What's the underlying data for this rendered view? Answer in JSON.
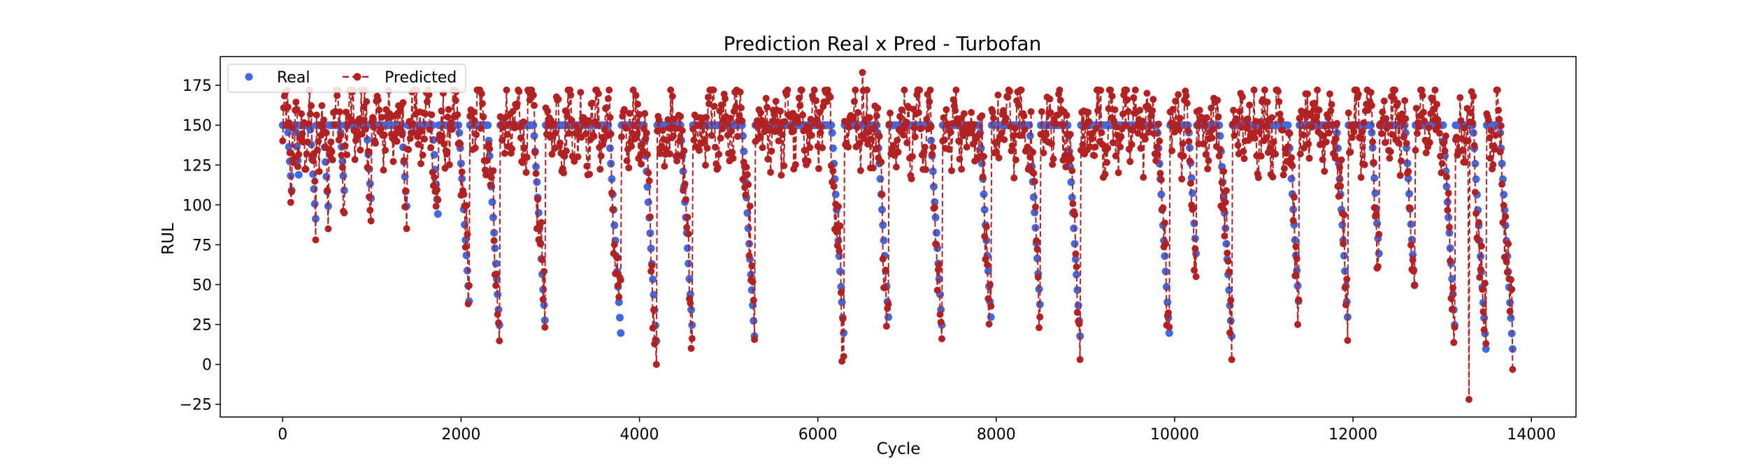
{
  "chart_data": {
    "type": "line",
    "title": "Prediction Real x Pred - Turbofan",
    "xlabel": "Cycle",
    "ylabel": "RUL",
    "xlim": [
      -700,
      14500
    ],
    "ylim": [
      -33,
      193
    ],
    "xticks": [
      0,
      2000,
      4000,
      6000,
      8000,
      10000,
      12000,
      14000
    ],
    "yticks": [
      -25,
      0,
      25,
      50,
      75,
      100,
      125,
      150,
      175
    ],
    "grid": false,
    "legend_position": "top-left",
    "legend": [
      {
        "name": "Real",
        "style": "markers",
        "color": "#4169e1"
      },
      {
        "name": "Predicted",
        "style": "dashed line with markers",
        "color": "#b22222"
      }
    ],
    "series": [
      {
        "name": "Real",
        "color": "#4169e1",
        "cap": 150,
        "note": "Each engine run: RUL capped at 150, then decreasing linearly to the minimum",
        "engines": [
          [
            0,
            110,
            100
          ],
          [
            110,
            190,
            110
          ],
          [
            190,
            380,
            82
          ],
          [
            380,
            520,
            90
          ],
          [
            520,
            700,
            100
          ],
          [
            700,
            1000,
            95
          ],
          [
            1000,
            1400,
            90
          ],
          [
            1400,
            1750,
            85
          ],
          [
            1750,
            2100,
            30
          ],
          [
            2100,
            2440,
            15
          ],
          [
            2440,
            2950,
            18
          ],
          [
            2950,
            3800,
            10
          ],
          [
            3800,
            4200,
            5
          ],
          [
            4200,
            4600,
            15
          ],
          [
            4600,
            5300,
            8
          ],
          [
            5300,
            6300,
            10
          ],
          [
            6300,
            6800,
            20
          ],
          [
            6800,
            7400,
            15
          ],
          [
            7400,
            7950,
            20
          ],
          [
            7950,
            8500,
            28
          ],
          [
            8500,
            8950,
            8
          ],
          [
            8950,
            9950,
            10
          ],
          [
            9950,
            10250,
            60
          ],
          [
            10250,
            10650,
            8
          ],
          [
            10650,
            11400,
            30
          ],
          [
            11400,
            11950,
            20
          ],
          [
            11950,
            12300,
            60
          ],
          [
            12300,
            12700,
            40
          ],
          [
            12700,
            13150,
            15
          ],
          [
            13150,
            13500,
            0
          ],
          [
            13500,
            13800,
            0
          ]
        ]
      },
      {
        "name": "Predicted",
        "color": "#b22222",
        "note": "Noisy predictions oscillating around the real RUL, min about -22 near cycle 13300, max about 183 near cycle 6500"
      }
    ]
  }
}
